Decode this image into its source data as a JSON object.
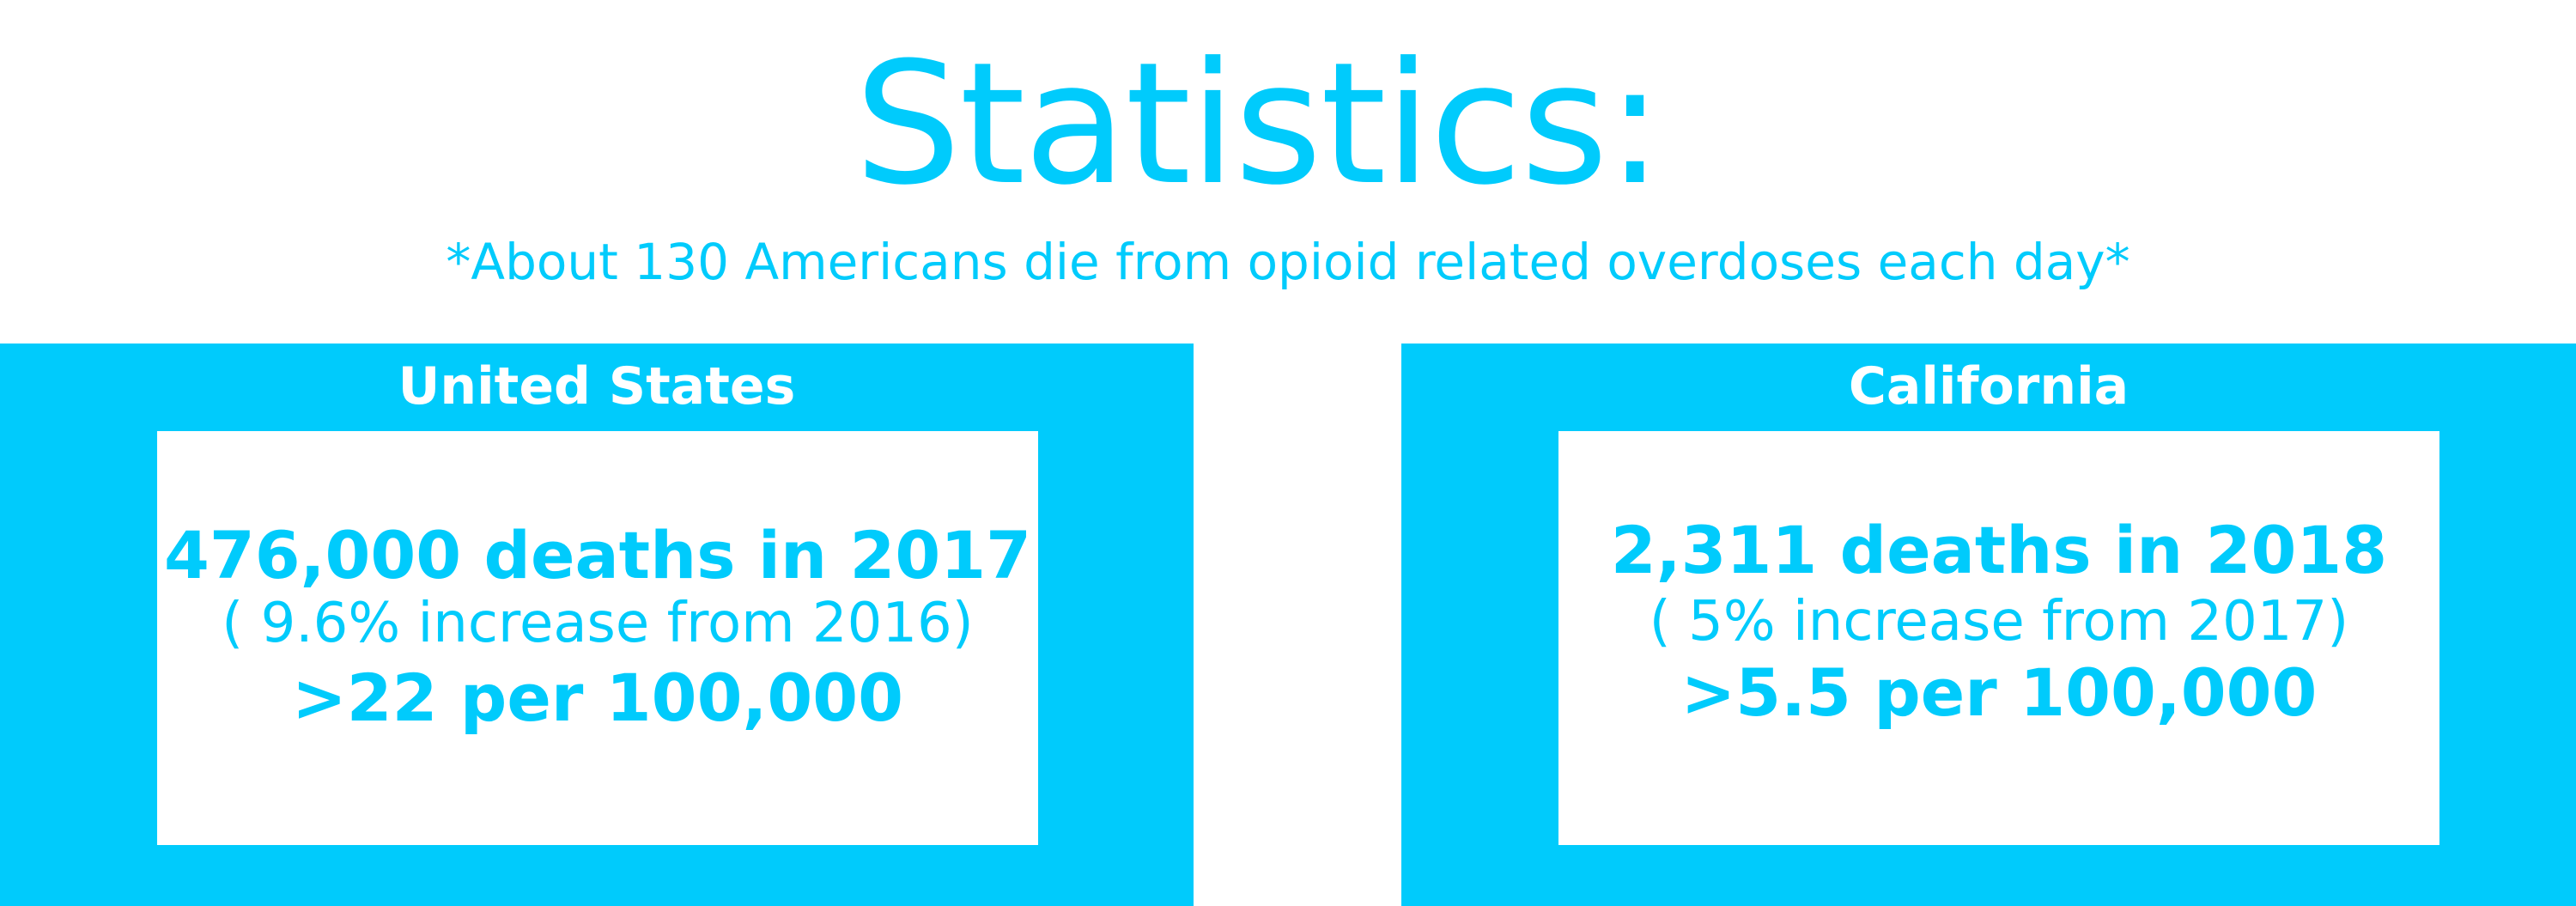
{
  "header": {
    "title": "Statistics:",
    "subtitle": "*About 130 Americans die from opioid related overdoses each day*"
  },
  "panels": [
    {
      "heading": "United States",
      "deaths": "476,000 deaths in 2017",
      "change": "( 9.6% increase from 2016)",
      "rate": ">22 per 100,000"
    },
    {
      "heading": "California",
      "deaths": "2,311 deaths in 2018",
      "change": "( 5% increase from 2017)",
      "rate": ">5.5 per 100,000"
    }
  ],
  "colors": {
    "accent": "#00cbfc",
    "background": "#ffffff"
  }
}
